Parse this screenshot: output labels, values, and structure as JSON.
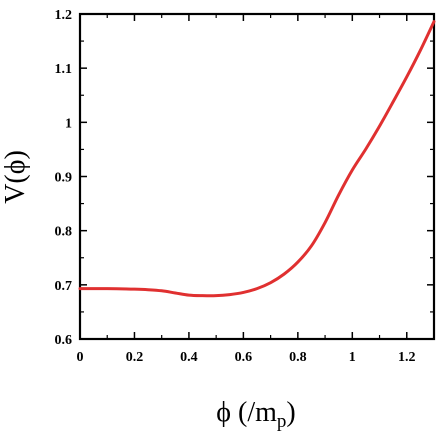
{
  "chart_data": {
    "type": "line",
    "title": "",
    "xlabel": "ϕ (/m_p)",
    "xlabel_main": "ϕ (/m",
    "xlabel_sub": "p",
    "xlabel_close": ")",
    "ylabel": "V(ϕ)",
    "xlim": [
      0,
      1.3
    ],
    "ylim": [
      0.6,
      1.2
    ],
    "xticks": [
      0,
      0.2,
      0.4,
      0.6,
      0.8,
      1,
      1.2
    ],
    "xtick_labels": [
      "0",
      "0.2",
      "0.4",
      "0.6",
      "0.8",
      "1",
      "1.2"
    ],
    "yticks": [
      0.6,
      0.7,
      0.8,
      0.9,
      1.0,
      1.1,
      1.2
    ],
    "ytick_labels": [
      "0.6",
      "0.7",
      "0.8",
      "0.9",
      "1",
      "1.1",
      "1.2"
    ],
    "grid": false,
    "legend": "none",
    "series": [
      {
        "color": "#e03030",
        "x": [
          0,
          0.1,
          0.2,
          0.25,
          0.3,
          0.35,
          0.4,
          0.45,
          0.5,
          0.55,
          0.6,
          0.65,
          0.7,
          0.75,
          0.8,
          0.85,
          0.9,
          0.95,
          1.0,
          1.05,
          1.1,
          1.15,
          1.2,
          1.25,
          1.3
        ],
        "y": [
          0.693,
          0.693,
          0.692,
          0.691,
          0.689,
          0.685,
          0.681,
          0.68,
          0.68,
          0.682,
          0.686,
          0.693,
          0.704,
          0.72,
          0.742,
          0.772,
          0.815,
          0.866,
          0.912,
          0.951,
          0.993,
          1.038,
          1.084,
          1.133,
          1.186
        ]
      }
    ]
  }
}
